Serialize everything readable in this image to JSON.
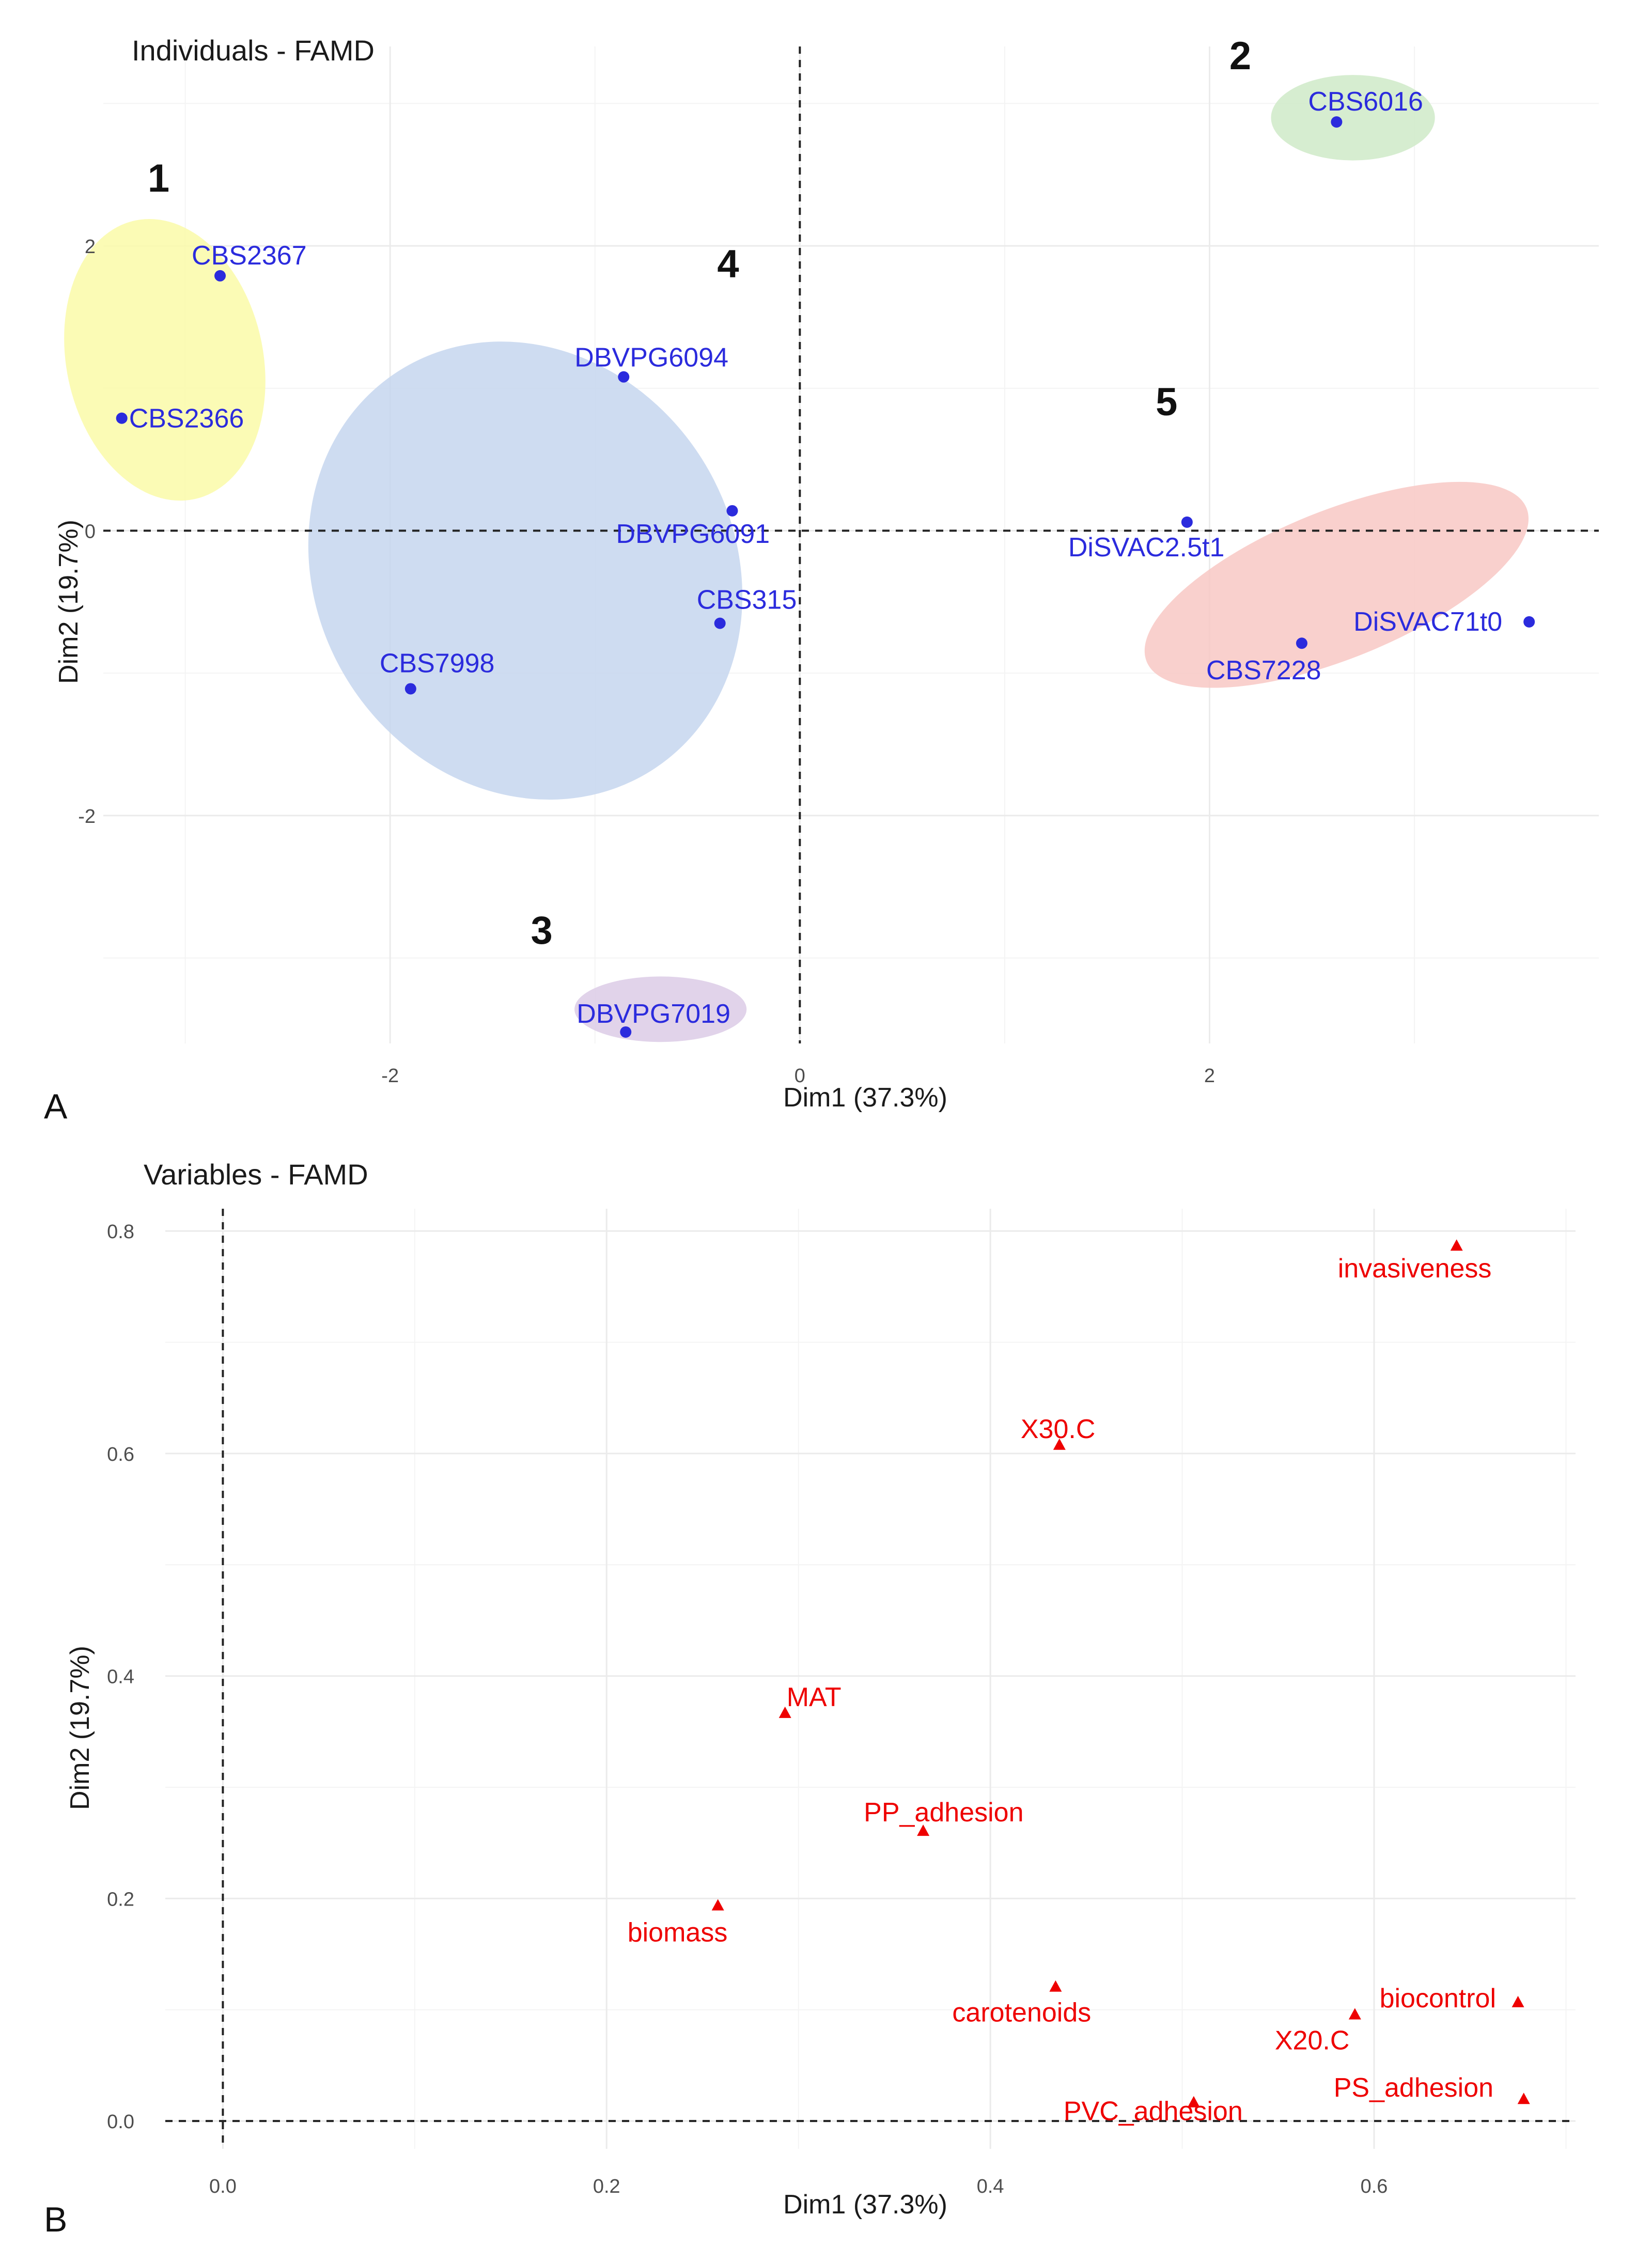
{
  "chart_data": [
    {
      "type": "scatter",
      "title": "Individuals - FAMD",
      "xlabel": "Dim1 (37.3%)",
      "ylabel": "Dim2 (19.7%)",
      "xlim": [
        -3.4,
        3.9
      ],
      "ylim": [
        -3.6,
        3.4
      ],
      "xticks": [
        -2,
        0,
        2
      ],
      "yticks": [
        -2,
        0,
        2
      ],
      "panel_label": "A",
      "points": [
        {
          "label": "CBS2367",
          "x": -2.83,
          "y": 1.79,
          "group": "1"
        },
        {
          "label": "CBS2366",
          "x": -3.31,
          "y": 0.79,
          "group": "1"
        },
        {
          "label": "CBS6016",
          "x": 2.62,
          "y": 2.87,
          "group": "2"
        },
        {
          "label": "DBVPG7019",
          "x": -0.85,
          "y": -3.52,
          "group": "3"
        },
        {
          "label": "DBVPG6094",
          "x": -0.86,
          "y": 1.08,
          "group": "4"
        },
        {
          "label": "DBVPG6091",
          "x": -0.33,
          "y": 0.14,
          "group": "4"
        },
        {
          "label": "CBS315",
          "x": -0.39,
          "y": -0.65,
          "group": "4"
        },
        {
          "label": "CBS7998",
          "x": -1.9,
          "y": -1.11,
          "group": "4"
        },
        {
          "label": "DiSVAC2.5t1",
          "x": 1.89,
          "y": 0.06,
          "group": "5"
        },
        {
          "label": "DiSVAC71t0",
          "x": 3.56,
          "y": -0.64,
          "group": "5"
        },
        {
          "label": "CBS7228",
          "x": 2.45,
          "y": -0.79,
          "group": "5"
        }
      ],
      "groups": [
        {
          "id": "1",
          "color": "#fafaa8",
          "cx": -3.1,
          "cy": 1.2,
          "rx": 0.48,
          "ry": 1.0,
          "angle": 12
        },
        {
          "id": "2",
          "color": "#cfeac8",
          "cx": 2.7,
          "cy": 2.9,
          "rx": 0.4,
          "ry": 0.3,
          "angle": 0
        },
        {
          "id": "3",
          "color": "#dccbe6",
          "cx": -0.68,
          "cy": -3.36,
          "rx": 0.42,
          "ry": 0.23,
          "angle": 0
        },
        {
          "id": "4",
          "color": "#c5d6ee",
          "cx": -1.34,
          "cy": -0.28,
          "rx": 1.02,
          "ry": 1.66,
          "angle": 32
        },
        {
          "id": "5",
          "color": "#f8c8c4",
          "cx": 2.62,
          "cy": -0.38,
          "rx": 1.0,
          "ry": 0.52,
          "angle": 22
        }
      ],
      "group_labels": [
        {
          "text": "1",
          "x": -3.13,
          "y": 2.38
        },
        {
          "text": "2",
          "x": 2.15,
          "y": 3.24
        },
        {
          "text": "3",
          "x": -1.26,
          "y": -2.9
        },
        {
          "text": "4",
          "x": -0.35,
          "y": 1.78
        },
        {
          "text": "5",
          "x": 1.79,
          "y": 0.81
        }
      ]
    },
    {
      "type": "scatter",
      "title": "Variables - FAMD",
      "xlabel": "Dim1 (37.3%)",
      "ylabel": "Dim2 (19.7%)",
      "xlim": [
        -0.03,
        0.705
      ],
      "ylim": [
        -0.025,
        0.82
      ],
      "xticks": [
        0.0,
        0.2,
        0.4,
        0.6
      ],
      "yticks": [
        0.0,
        0.2,
        0.4,
        0.6,
        0.8
      ],
      "panel_label": "B",
      "points": [
        {
          "label": "invasiveness",
          "x": 0.643,
          "y": 0.786
        },
        {
          "label": "X30.C",
          "x": 0.436,
          "y": 0.607
        },
        {
          "label": "MAT",
          "x": 0.293,
          "y": 0.366
        },
        {
          "label": "PP_adhesion",
          "x": 0.365,
          "y": 0.26
        },
        {
          "label": "biomass",
          "x": 0.258,
          "y": 0.193
        },
        {
          "label": "carotenoids",
          "x": 0.434,
          "y": 0.12
        },
        {
          "label": "biocontrol",
          "x": 0.675,
          "y": 0.106
        },
        {
          "label": "X20.C",
          "x": 0.59,
          "y": 0.095
        },
        {
          "label": "PS_adhesion",
          "x": 0.678,
          "y": 0.019
        },
        {
          "label": "PVC_adhesion",
          "x": 0.506,
          "y": 0.016
        }
      ]
    }
  ]
}
